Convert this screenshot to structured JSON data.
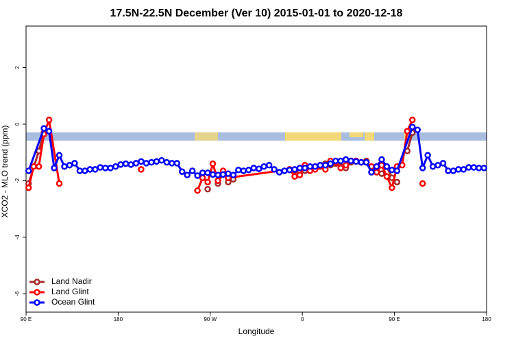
{
  "chart_data": {
    "type": "line",
    "title": "17.5N-22.5N December (Ver 10)   2015-01-01 to 2020-12-18",
    "x_label": "Longitude",
    "y_label": "XCO2 - MLO trend (ppm)",
    "xlim": [
      90,
      540
    ],
    "ylim": [
      -6.65,
      3.47
    ],
    "xticks": [
      {
        "value": 90,
        "label": "90 E"
      },
      180,
      {
        "value": 270,
        "label": "90 W"
      },
      {
        "value": 360,
        "label": "0"
      },
      {
        "value": 450,
        "label": "90 E"
      },
      {
        "value": 540,
        "label": "180"
      }
    ],
    "yticks": [
      -6,
      -4,
      -2,
      0,
      2
    ],
    "legend": "bottom-left",
    "series": [
      {
        "name": "Land Nadir",
        "color": "#a52a2a",
        "x": [
          92.5,
          102.5,
          107.5,
          262.5,
          267.5,
          272.5,
          277.5,
          282.5,
          287.5,
          292.5,
          347.5,
          352.5,
          357.5,
          362.5,
          367.5,
          372.5,
          377.5,
          382.5,
          387.5,
          392.5,
          397.5,
          402.5,
          407.5,
          412.5,
          417.5,
          422.5,
          427.5,
          432.5,
          437.5,
          442.5,
          447.5,
          452.5,
          457.5,
          462.5,
          467.5
        ],
        "values": [
          -2.1,
          -0.95,
          -0.3,
          null,
          -2.3,
          null,
          -2.1,
          -1.7,
          -2.05,
          -1.95,
          null,
          -1.65,
          -1.7,
          -1.65,
          -1.55,
          -1.5,
          -1.5,
          -1.4,
          -1.45,
          -1.4,
          -1.5,
          -1.55,
          -1.35,
          -1.3,
          -1.35,
          -1.3,
          -1.7,
          -1.6,
          -1.75,
          -1.5,
          -1.9,
          -2.05,
          null,
          -0.95,
          -0.3
        ]
      },
      {
        "name": "Land Glint",
        "color": "#ff0000",
        "x": [
          92.5,
          97.5,
          102.5,
          107.5,
          112.5,
          122.5,
          197.5,
          202.5,
          207.5,
          257.5,
          262.5,
          267.5,
          272.5,
          277.5,
          282.5,
          287.5,
          347.5,
          352.5,
          357.5,
          362.5,
          367.5,
          372.5,
          377.5,
          382.5,
          387.5,
          392.5,
          397.5,
          402.5,
          407.5,
          412.5,
          417.5,
          422.5,
          427.5,
          432.5,
          437.5,
          442.5,
          447.5,
          452.5,
          457.5,
          462.5,
          467.5,
          472.5,
          477.5,
          482.5
        ],
        "values": [
          -2.25,
          -1.5,
          -1.5,
          -0.35,
          0.15,
          -2.1,
          null,
          -1.6,
          null,
          -2.35,
          -1.9,
          -2.05,
          -1.4,
          -2.0,
          -1.65,
          -1.9,
          -1.6,
          -1.85,
          -1.8,
          -1.45,
          -1.65,
          -1.6,
          -1.5,
          -1.6,
          -1.3,
          -1.35,
          -1.55,
          -1.45,
          -1.3,
          -1.3,
          -1.35,
          -1.35,
          -1.5,
          -1.7,
          -1.45,
          -1.85,
          -2.25,
          -1.5,
          -1.45,
          -0.25,
          0.15,
          null,
          -2.1,
          null
        ]
      },
      {
        "name": "Ocean Glint",
        "color": "#0000ff",
        "x": [
          92.5,
          107.5,
          112.5,
          117.5,
          122.5,
          127.5,
          132.5,
          137.5,
          142.5,
          147.5,
          152.5,
          157.5,
          162.5,
          167.5,
          172.5,
          177.5,
          182.5,
          187.5,
          192.5,
          197.5,
          202.5,
          207.5,
          212.5,
          217.5,
          222.5,
          227.5,
          232.5,
          237.5,
          242.5,
          247.5,
          252.5,
          257.5,
          262.5,
          267.5,
          272.5,
          277.5,
          282.5,
          287.5,
          292.5,
          297.5,
          302.5,
          307.5,
          312.5,
          317.5,
          322.5,
          327.5,
          332.5,
          337.5,
          342.5,
          347.5,
          352.5,
          357.5,
          362.5,
          367.5,
          372.5,
          377.5,
          382.5,
          387.5,
          392.5,
          397.5,
          402.5,
          407.5,
          412.5,
          417.5,
          422.5,
          427.5,
          432.5,
          437.5,
          442.5,
          447.5,
          452.5,
          467.5,
          472.5,
          477.5,
          482.5,
          487.5,
          492.5,
          497.5,
          502.5,
          507.5,
          512.5,
          517.5,
          522.5,
          527.5,
          532.5,
          537.5
        ],
        "values": [
          -1.65,
          -0.15,
          -0.25,
          -1.55,
          -1.1,
          -1.5,
          -1.45,
          -1.38,
          -1.65,
          -1.65,
          -1.6,
          -1.6,
          -1.53,
          -1.55,
          -1.55,
          -1.5,
          -1.43,
          -1.4,
          -1.43,
          -1.38,
          -1.32,
          -1.38,
          -1.35,
          -1.32,
          -1.28,
          -1.35,
          -1.38,
          -1.38,
          -1.68,
          -1.8,
          -1.65,
          -1.82,
          -1.72,
          -1.72,
          -1.78,
          -1.8,
          -1.78,
          -1.75,
          -1.8,
          -1.62,
          -1.65,
          -1.62,
          -1.55,
          -1.58,
          -1.5,
          -1.45,
          -1.6,
          -1.7,
          -1.65,
          -1.62,
          -1.6,
          -1.55,
          -1.55,
          -1.5,
          -1.5,
          -1.45,
          -1.45,
          -1.4,
          -1.3,
          -1.3,
          -1.25,
          -1.3,
          -1.32,
          -1.35,
          -1.35,
          -1.7,
          -1.5,
          -1.25,
          -1.5,
          -1.62,
          -1.65,
          -0.1,
          -0.2,
          -1.55,
          -1.1,
          -1.5,
          -1.45,
          -1.38,
          -1.65,
          -1.65,
          -1.6,
          -1.6,
          -1.53,
          -1.53,
          -1.55,
          -1.55
        ]
      }
    ]
  }
}
